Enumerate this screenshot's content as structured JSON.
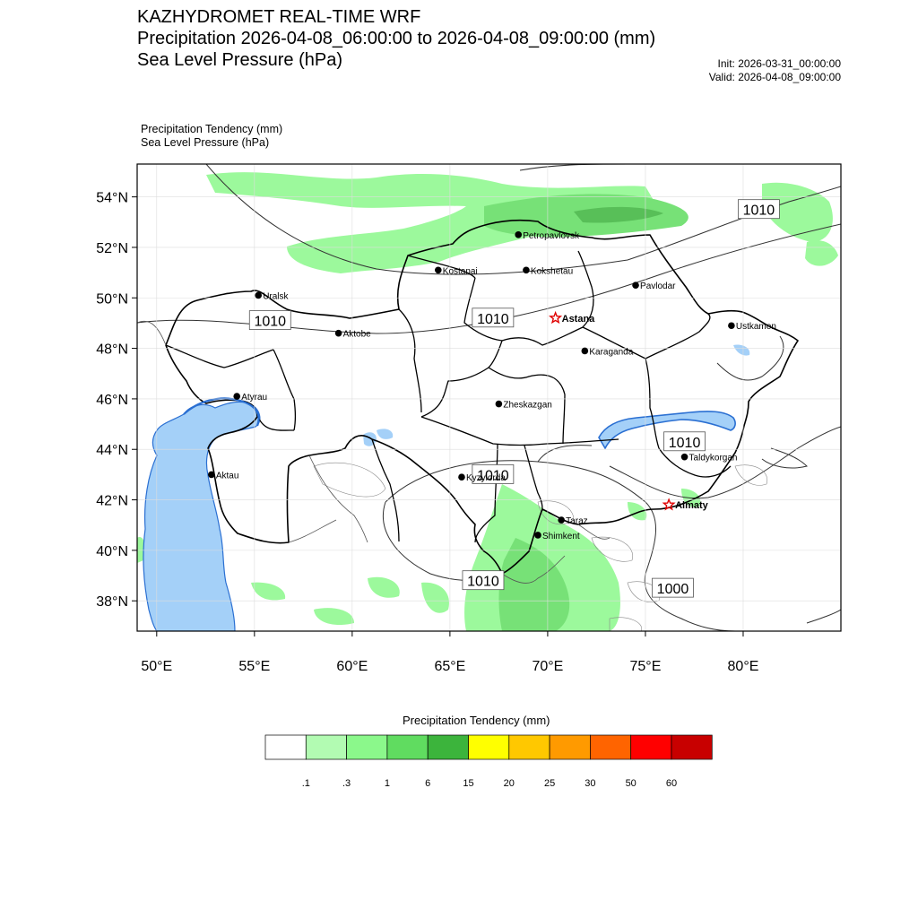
{
  "header": {
    "title": "KAZHYDROMET REAL-TIME WRF",
    "field1": "Precipitation 2026-04-08_06:00:00 to 2026-04-08_09:00:00 (mm)",
    "field2": "Sea Level Pressure  (hPa)",
    "init": "Init: 2026-03-31_00:00:00",
    "valid": "Valid: 2026-04-08_09:00:00"
  },
  "subheader": {
    "line1": "Precipitation Tendency   (mm)",
    "line2": "Sea Level Pressure   (hPa)"
  },
  "map": {
    "lon_range": [
      49,
      85
    ],
    "lat_range": [
      36.8,
      55.3
    ],
    "lat_ticks": [
      {
        "value": 38,
        "label": "38°N"
      },
      {
        "value": 40,
        "label": "40°N"
      },
      {
        "value": 42,
        "label": "42°N"
      },
      {
        "value": 44,
        "label": "44°N"
      },
      {
        "value": 46,
        "label": "46°N"
      },
      {
        "value": 48,
        "label": "48°N"
      },
      {
        "value": 50,
        "label": "50°N"
      },
      {
        "value": 52,
        "label": "52°N"
      },
      {
        "value": 54,
        "label": "54°N"
      }
    ],
    "lon_ticks": [
      {
        "value": 50,
        "label": "50°E"
      },
      {
        "value": 55,
        "label": "55°E"
      },
      {
        "value": 60,
        "label": "60°E"
      },
      {
        "value": 65,
        "label": "65°E"
      },
      {
        "value": 70,
        "label": "70°E"
      },
      {
        "value": 75,
        "label": "75°E"
      },
      {
        "value": 80,
        "label": "80°E"
      }
    ],
    "cities": [
      {
        "name": "Petropavlovsk",
        "lon": 68.5,
        "lat": 52.5,
        "marker": "dot"
      },
      {
        "name": "Kostanai",
        "lon": 64.4,
        "lat": 51.1,
        "marker": "dot"
      },
      {
        "name": "Kokshetau",
        "lon": 68.9,
        "lat": 51.1,
        "marker": "dot"
      },
      {
        "name": "Pavlodar",
        "lon": 74.5,
        "lat": 50.5,
        "marker": "dot"
      },
      {
        "name": "Uralsk",
        "lon": 55.2,
        "lat": 50.1,
        "marker": "dot"
      },
      {
        "name": "Astana",
        "lon": 70.4,
        "lat": 49.2,
        "marker": "star"
      },
      {
        "name": "Ustkamen",
        "lon": 79.4,
        "lat": 48.9,
        "marker": "dot"
      },
      {
        "name": "Aktobe",
        "lon": 59.3,
        "lat": 48.6,
        "marker": "dot"
      },
      {
        "name": "Karaganda",
        "lon": 71.9,
        "lat": 47.9,
        "marker": "dot"
      },
      {
        "name": "Atyrau",
        "lon": 54.1,
        "lat": 46.1,
        "marker": "dot"
      },
      {
        "name": "Zheskazgan",
        "lon": 67.5,
        "lat": 45.8,
        "marker": "dot"
      },
      {
        "name": "Aktau",
        "lon": 52.8,
        "lat": 43.0,
        "marker": "dot"
      },
      {
        "name": "Taldykorgan",
        "lon": 77.0,
        "lat": 43.7,
        "marker": "dot"
      },
      {
        "name": "Kyzylorda",
        "lon": 65.6,
        "lat": 42.9,
        "marker": "dot"
      },
      {
        "name": "Almaty",
        "lon": 76.2,
        "lat": 41.8,
        "marker": "star"
      },
      {
        "name": "Taraz",
        "lon": 70.7,
        "lat": 41.2,
        "marker": "dot"
      },
      {
        "name": "Shimkent",
        "lon": 69.5,
        "lat": 40.6,
        "marker": "dot"
      }
    ],
    "pressure_labels": [
      {
        "text": "1010",
        "lon": 80.8,
        "lat": 53.5
      },
      {
        "text": "1010",
        "lon": 55.8,
        "lat": 49.1
      },
      {
        "text": "1010",
        "lon": 67.2,
        "lat": 49.2
      },
      {
        "text": "1010",
        "lon": 77.0,
        "lat": 44.3
      },
      {
        "text": "1010",
        "lon": 67.2,
        "lat": 43.0
      },
      {
        "text": "1010",
        "lon": 66.7,
        "lat": 38.8
      },
      {
        "text": "1000",
        "lon": 76.4,
        "lat": 38.5
      }
    ]
  },
  "legend": {
    "title": "Precipitation Tendency (mm)",
    "colors": [
      "#ffffff",
      "#b2fbb2",
      "#8bf88b",
      "#60dc60",
      "#3cb43c",
      "#ffff00",
      "#ffc800",
      "#ff9a00",
      "#ff6400",
      "#ff0000",
      "#c80000"
    ],
    "labels": [
      ".1",
      ".3",
      "1",
      "6",
      "15",
      "20",
      "25",
      "30",
      "50",
      "60"
    ]
  },
  "colors": {
    "water": "#a4d0f8",
    "water_edge": "#2a6fd2"
  }
}
